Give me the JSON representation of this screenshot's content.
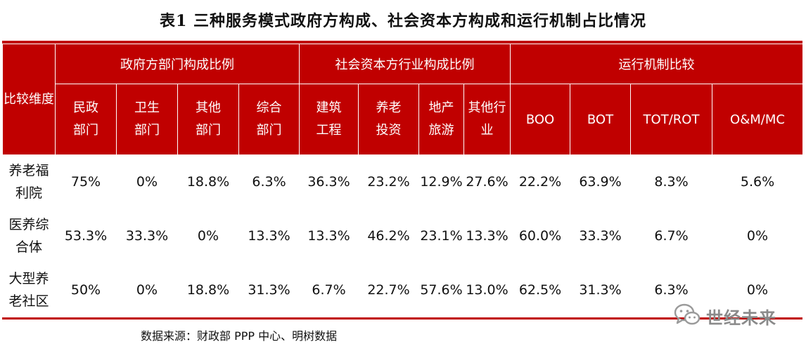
{
  "title": {
    "number": "表1",
    "text": "三种服务模式政府方构成、社会资本方构成和运行机制占比情况"
  },
  "header": {
    "corner": "比较维度",
    "groups": [
      "政府方部门构成比例",
      "社会资本方行业构成比例",
      "运行机制比较"
    ],
    "columns": [
      [
        "民政",
        "部门"
      ],
      [
        "卫生",
        "部门"
      ],
      [
        "其他",
        "部门"
      ],
      [
        "综合",
        "部门"
      ],
      [
        "建筑",
        "工程"
      ],
      [
        "养老",
        "投资"
      ],
      [
        "地产",
        "旅游"
      ],
      [
        "其他行",
        "业"
      ],
      [
        "BOO"
      ],
      [
        "BOT"
      ],
      [
        "TOT/ROT"
      ],
      [
        "O&M/MC"
      ]
    ]
  },
  "rows": [
    {
      "label": [
        "养老福",
        "利院"
      ],
      "values": [
        "75%",
        "0%",
        "18.8%",
        "6.3%",
        "36.3%",
        "23.2%",
        "12.9%",
        "27.6%",
        "22.2%",
        "63.9%",
        "8.3%",
        "5.6%"
      ]
    },
    {
      "label": [
        "医养综",
        "合体"
      ],
      "values": [
        "53.3%",
        "33.3%",
        "0%",
        "13.3%",
        "13.3%",
        "46.2%",
        "23.1%",
        "13.3%",
        "60.0%",
        "33.3%",
        "6.7%",
        "0%"
      ]
    },
    {
      "label": [
        "大型养",
        "老社区"
      ],
      "values": [
        "50%",
        "0%",
        "18.8%",
        "31.3%",
        "6.7%",
        "22.7%",
        "57.6%",
        "13.0%",
        "62.5%",
        "31.3%",
        "6.3%",
        "0%"
      ]
    }
  ],
  "source": "数据来源：财政部 PPP 中心、明树数据",
  "watermark": {
    "text": "世经未来",
    "icon": "wechat-icon",
    "color": "#8a8a8a"
  },
  "colors": {
    "header_bg": "#c00000",
    "header_text": "#ffffff"
  }
}
